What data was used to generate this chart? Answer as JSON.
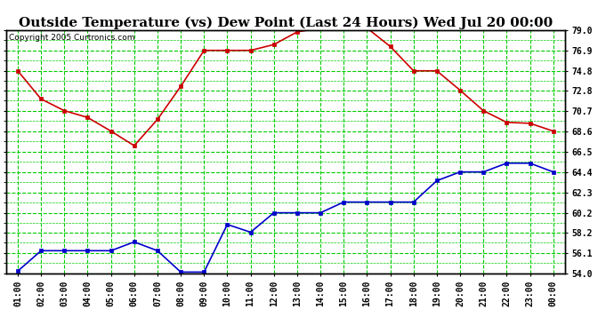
{
  "title": "Outside Temperature (vs) Dew Point (Last 24 Hours) Wed Jul 20 00:00",
  "copyright": "Copyright 2005 Curtronics.com",
  "x_labels": [
    "01:00",
    "02:00",
    "03:00",
    "04:00",
    "05:00",
    "06:00",
    "07:00",
    "08:00",
    "09:00",
    "10:00",
    "11:00",
    "12:00",
    "13:00",
    "14:00",
    "15:00",
    "16:00",
    "17:00",
    "18:00",
    "19:00",
    "20:00",
    "21:00",
    "22:00",
    "23:00",
    "00:00"
  ],
  "temp_data": [
    74.8,
    71.9,
    70.7,
    70.0,
    68.6,
    67.1,
    69.8,
    73.2,
    76.9,
    76.9,
    76.9,
    77.5,
    78.8,
    79.2,
    79.2,
    79.2,
    77.3,
    74.8,
    74.8,
    72.8,
    70.7,
    69.5,
    69.4,
    68.6
  ],
  "dew_data": [
    54.2,
    56.3,
    56.3,
    56.3,
    56.3,
    57.2,
    56.3,
    54.1,
    54.1,
    59.0,
    58.2,
    60.2,
    60.2,
    60.2,
    61.3,
    61.3,
    61.3,
    61.3,
    63.5,
    64.4,
    64.4,
    65.3,
    65.3,
    64.4
  ],
  "temp_color": "#cc0000",
  "dew_color": "#0000cc",
  "grid_color": "#00cc00",
  "bg_color": "#ffffff",
  "ylim": [
    54.0,
    79.0
  ],
  "ytick_labels": [
    "54.0",
    "56.1",
    "58.2",
    "60.2",
    "62.3",
    "64.4",
    "66.5",
    "68.6",
    "70.7",
    "72.8",
    "74.8",
    "76.9",
    "79.0"
  ],
  "ytick_values": [
    54.0,
    56.1,
    58.2,
    60.2,
    62.3,
    64.4,
    66.5,
    68.6,
    70.7,
    72.8,
    74.8,
    76.9,
    79.0
  ],
  "marker": "s",
  "marker_size": 2.5,
  "line_width": 1.2,
  "title_fontsize": 11,
  "tick_fontsize": 7,
  "copyright_fontsize": 6.5
}
